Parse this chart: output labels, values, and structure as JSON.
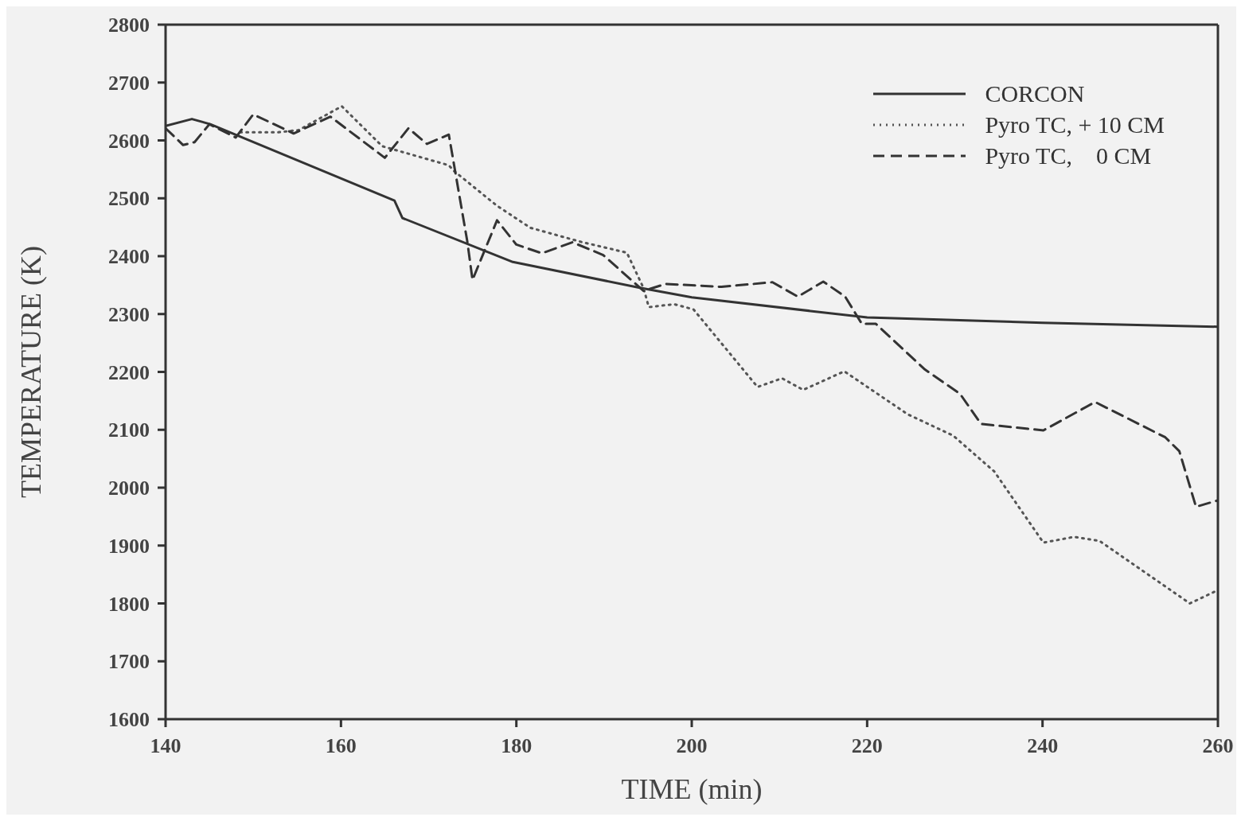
{
  "chart_data": {
    "type": "line",
    "xlabel": "TIME (min)",
    "ylabel": "TEMPERATURE (K)",
    "xlim": [
      140,
      260
    ],
    "xticks": [
      140,
      160,
      180,
      200,
      220,
      240,
      260
    ],
    "ylim": [
      1600,
      2800
    ],
    "yticks": [
      1600,
      1700,
      1800,
      1900,
      2000,
      2100,
      2200,
      2300,
      2400,
      2500,
      2600,
      2700,
      2800
    ],
    "legend": "top right",
    "marker": "none",
    "series": [
      {
        "name": "CORCON",
        "color": "#333333",
        "line_style": "solid",
        "x": [
          140,
          143,
          145.1,
          166.1,
          167,
          179.6,
          194.2,
          200,
          220,
          240,
          260
        ],
        "values": [
          2625,
          2637,
          2628,
          2496,
          2466,
          2390,
          2345,
          2329,
          2294,
          2285,
          2278
        ]
      },
      {
        "name": "Pyro TC, + 10 CM",
        "color": "#555555",
        "line_style": "dotted",
        "x": [
          148.5,
          152.8,
          155.2,
          160.1,
          164.7,
          172.3,
          172.9,
          177.8,
          181.6,
          187.3,
          192.6,
          194.5,
          195.1,
          198,
          200.2,
          207.5,
          210.3,
          212.7,
          217.4,
          224.6,
          229.8,
          234.5,
          240.1,
          243.6,
          246.5,
          256.8,
          260
        ],
        "values": [
          2614,
          2614,
          2618,
          2659,
          2590,
          2557,
          2547,
          2487,
          2449,
          2425,
          2406,
          2345,
          2312,
          2317,
          2308,
          2174,
          2189,
          2169,
          2201,
          2127,
          2090,
          2028,
          1905,
          1915,
          1908,
          1800,
          1823
        ]
      },
      {
        "name": "Pyro TC,    0 CM",
        "color": "#333333",
        "line_style": "dashed",
        "x": [
          140,
          142,
          143.3,
          145,
          148,
          150,
          154.6,
          158.8,
          165,
          167.7,
          169.8,
          172.3,
          174.4,
          175,
          177.8,
          180,
          182.9,
          186.4,
          189.9,
          194.5,
          197,
          203.4,
          209.2,
          212.1,
          215,
          217.5,
          219.4,
          221,
          226.6,
          230.6,
          233,
          240.1,
          246,
          254,
          255.6,
          257.5,
          260
        ],
        "values": [
          2621,
          2592,
          2597,
          2628,
          2605,
          2645,
          2612,
          2641,
          2570,
          2621,
          2594,
          2610,
          2426,
          2359,
          2462,
          2420,
          2405,
          2424,
          2402,
          2340,
          2352,
          2347,
          2355,
          2330,
          2356,
          2330,
          2283,
          2283,
          2204,
          2162,
          2110,
          2099,
          2148,
          2087,
          2063,
          1967,
          1978
        ]
      }
    ]
  }
}
